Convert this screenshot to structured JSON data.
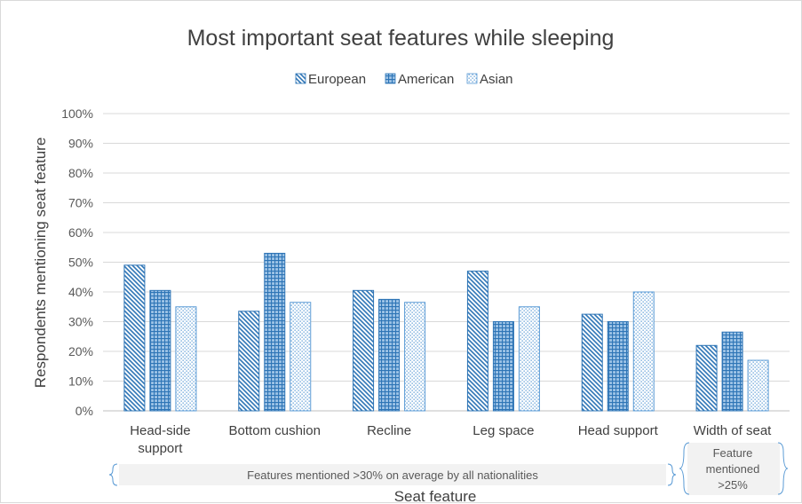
{
  "chart_data": {
    "type": "bar",
    "title": "Most important seat features while sleeping",
    "xlabel": "Seat feature",
    "ylabel": "Respondents mentioning seat feature",
    "ylim": [
      0,
      100
    ],
    "y_ticks": [
      "0%",
      "10%",
      "20%",
      "30%",
      "40%",
      "50%",
      "60%",
      "70%",
      "80%",
      "90%",
      "100%"
    ],
    "grid": true,
    "legend_position": "top",
    "categories": [
      [
        "Head-side",
        "support"
      ],
      [
        "Bottom cushion"
      ],
      [
        "Recline"
      ],
      [
        "Leg space"
      ],
      [
        "Head support"
      ],
      [
        "Width of seat"
      ]
    ],
    "series": [
      {
        "name": "European",
        "values": [
          49,
          33.5,
          40.5,
          47,
          32.5,
          22
        ],
        "color": "#2e75b6",
        "pattern": "diagonal"
      },
      {
        "name": "American",
        "values": [
          40.5,
          53,
          37.5,
          30,
          30,
          26.5
        ],
        "color": "#2e75b6",
        "pattern": "grid"
      },
      {
        "name": "Asian",
        "values": [
          35,
          36.5,
          36.5,
          35,
          40,
          17
        ],
        "color": "#5b9bd5",
        "pattern": "dots"
      }
    ],
    "annotations": [
      {
        "text": "Features mentioned >30% on average by all nationalities",
        "applies_to": [
          0,
          1,
          2,
          3,
          4
        ]
      },
      {
        "text": [
          "Feature",
          "mentioned",
          ">25%"
        ],
        "applies_to": [
          5
        ]
      }
    ]
  }
}
